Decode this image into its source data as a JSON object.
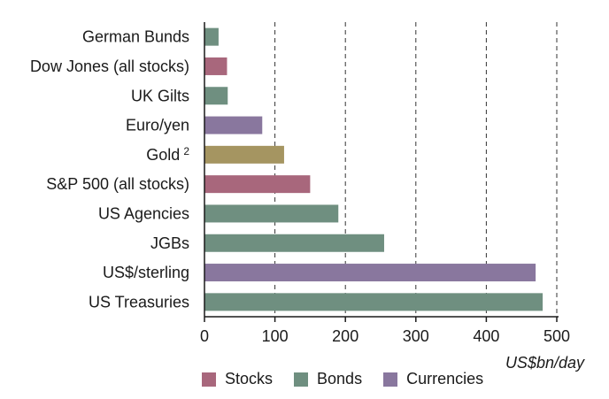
{
  "chart_data": {
    "type": "bar",
    "orientation": "horizontal",
    "categories": [
      "German Bunds",
      "Dow Jones (all stocks)",
      "UK Gilts",
      "Euro/yen",
      "Gold",
      "S&P 500 (all stocks)",
      "US Agencies",
      "JGBs",
      "US$/sterling",
      "US Treasuries"
    ],
    "category_superscripts": [
      "",
      "",
      "",
      "",
      "2",
      "",
      "",
      "",
      "",
      ""
    ],
    "values": [
      20,
      32,
      33,
      82,
      113,
      150,
      190,
      255,
      470,
      480
    ],
    "groups": [
      "Bonds",
      "Stocks",
      "Bonds",
      "Currencies",
      "Gold",
      "Stocks",
      "Bonds",
      "Bonds",
      "Currencies",
      "Bonds"
    ],
    "colors": {
      "Stocks": "#a8677c",
      "Bonds": "#6f8f80",
      "Currencies": "#89779e",
      "Gold": "#a59561"
    },
    "xlim": [
      0,
      500
    ],
    "xticks": [
      0,
      100,
      200,
      300,
      400,
      500
    ],
    "xlabel": "US$bn/day",
    "grid": "vertical dashed",
    "legend": {
      "position": "bottom",
      "entries": [
        "Stocks",
        "Bonds",
        "Currencies"
      ]
    }
  }
}
